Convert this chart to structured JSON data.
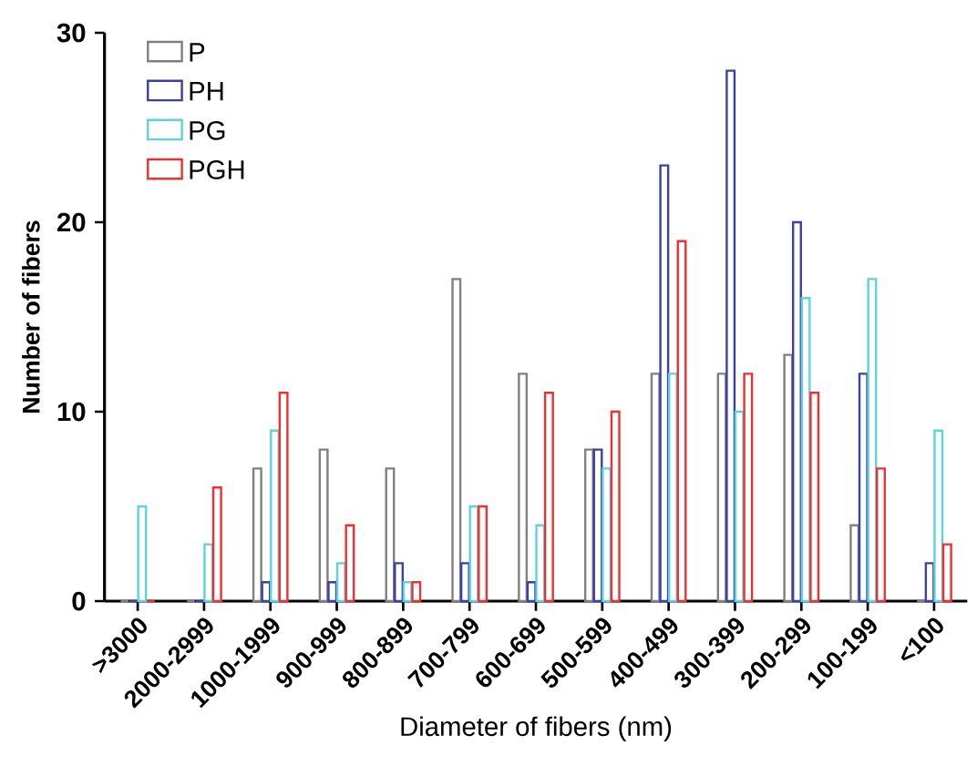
{
  "chart_data": {
    "type": "bar",
    "xlabel": "Diameter of fibers  (nm)",
    "ylabel": "Number of fibers",
    "categories": [
      ">3000",
      "2000-2999",
      "1000-1999",
      "900-999",
      "800-899",
      "700-799",
      "600-699",
      "500-599",
      "400-499",
      "300-399",
      "200-299",
      "100-199",
      "<100"
    ],
    "series": [
      {
        "name": "P",
        "color": "#808080",
        "values": [
          0,
          0,
          7,
          8,
          7,
          17,
          12,
          8,
          12,
          12,
          13,
          4,
          0
        ]
      },
      {
        "name": "PH",
        "color": "#3b3fa8",
        "values": [
          0,
          0,
          1,
          1,
          2,
          2,
          1,
          8,
          23,
          28,
          20,
          12,
          2
        ]
      },
      {
        "name": "PG",
        "color": "#5bd3e0",
        "values": [
          5,
          3,
          9,
          2,
          1,
          5,
          4,
          7,
          12,
          10,
          16,
          17,
          9
        ]
      },
      {
        "name": "PGH",
        "color": "#f03030",
        "values": [
          0,
          6,
          11,
          4,
          1,
          5,
          11,
          10,
          19,
          12,
          11,
          7,
          3
        ]
      }
    ],
    "ylim": [
      0,
      30
    ],
    "yticks": [
      0,
      10,
      20,
      30
    ],
    "legend": "top left",
    "grid": false
  }
}
